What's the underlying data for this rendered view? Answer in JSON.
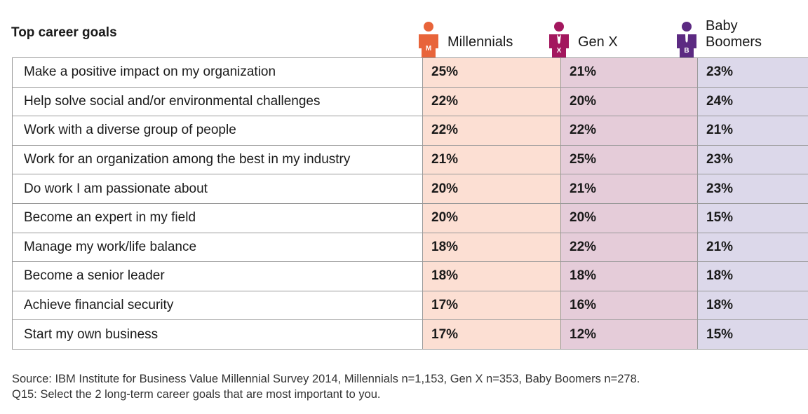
{
  "header": {
    "title": "Top career goals"
  },
  "columns": [
    {
      "key": "millennials",
      "label": "Millennials",
      "icon_letter": "M",
      "icon": "person-icon",
      "icon_color": "#e8643a",
      "cell_color": "#fcdfd3"
    },
    {
      "key": "genx",
      "label": "Gen X",
      "icon_letter": "X",
      "icon": "person-icon",
      "icon_color": "#a3175e",
      "cell_color": "#e5ccd9"
    },
    {
      "key": "boomers",
      "label": "Baby Boomers",
      "label_lines": [
        "Baby",
        "Boomers"
      ],
      "icon_letter": "B",
      "icon": "person-icon",
      "icon_color": "#5c2a82",
      "cell_color": "#dcd8ea"
    }
  ],
  "chart_data": {
    "type": "table",
    "title": "Top career goals",
    "categories": [
      "Make a positive impact on my organization",
      "Help solve social and/or environmental challenges",
      "Work with a diverse group of people",
      "Work for an organization among the best in my industry",
      "Do work I am passionate about",
      "Become an expert in my field",
      "Manage my work/life balance",
      "Become a senior leader",
      "Achieve financial security",
      "Start my own business"
    ],
    "series": [
      {
        "name": "Millennials",
        "values": [
          "25%",
          "22%",
          "22%",
          "21%",
          "20%",
          "20%",
          "18%",
          "18%",
          "17%",
          "17%"
        ]
      },
      {
        "name": "Gen X",
        "values": [
          "21%",
          "20%",
          "22%",
          "25%",
          "21%",
          "20%",
          "22%",
          "18%",
          "16%",
          "12%"
        ]
      },
      {
        "name": "Baby Boomers",
        "values": [
          "23%",
          "24%",
          "21%",
          "23%",
          "23%",
          "15%",
          "21%",
          "18%",
          "18%",
          "15%"
        ]
      }
    ]
  },
  "footer": {
    "source": "Source: IBM Institute for Business Value Millennial Survey 2014, Millennials n=1,153, Gen X n=353, Baby Boomers n=278.",
    "question": "Q15: Select the 2 long-term career goals that are most important to you."
  }
}
